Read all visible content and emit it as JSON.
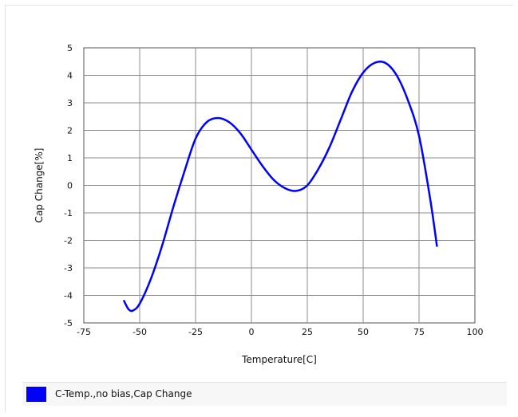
{
  "chart_data": {
    "type": "line",
    "title": "",
    "xlabel": "Temperature[C]",
    "ylabel": "Cap Change[%]",
    "xlim": [
      -75,
      100
    ],
    "ylim": [
      -5,
      5
    ],
    "x_ticks": [
      "-75",
      "-50",
      "-25",
      "0",
      "25",
      "50",
      "75",
      "100"
    ],
    "y_ticks": [
      "5",
      "4",
      "3",
      "2",
      "1",
      "0",
      "-1",
      "-2",
      "-3",
      "-4",
      "-5"
    ],
    "grid": true,
    "legend_position": "bottom",
    "series": [
      {
        "name": "C-Temp.,no bias,Cap Change",
        "color": "#0000ff",
        "x": [
          -57,
          -55,
          -53,
          -50,
          -45,
          -40,
          -35,
          -30,
          -25,
          -20,
          -15,
          -10,
          -5,
          0,
          5,
          10,
          15,
          20,
          25,
          30,
          35,
          40,
          45,
          50,
          55,
          60,
          65,
          70,
          75,
          80,
          83
        ],
        "y": [
          -4.2,
          -4.5,
          -4.55,
          -4.3,
          -3.4,
          -2.2,
          -0.8,
          0.5,
          1.7,
          2.3,
          2.45,
          2.3,
          1.9,
          1.3,
          0.7,
          0.2,
          -0.1,
          -0.2,
          0.0,
          0.6,
          1.4,
          2.4,
          3.4,
          4.1,
          4.45,
          4.45,
          4.0,
          3.1,
          1.8,
          -0.5,
          -2.2
        ]
      }
    ]
  }
}
